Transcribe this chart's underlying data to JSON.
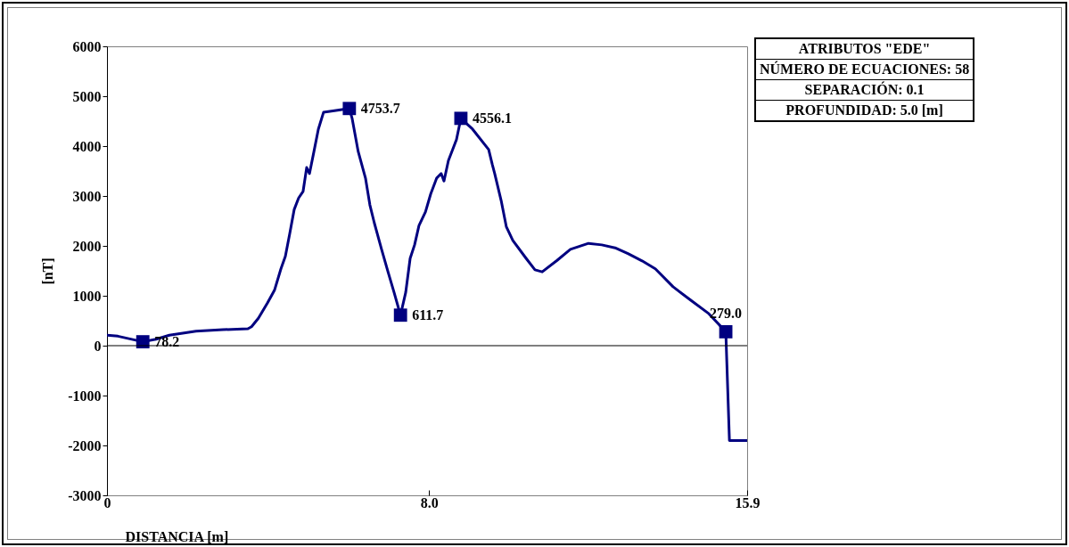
{
  "chart_data": {
    "type": "line",
    "xlabel": "DISTANCIA [m]",
    "ylabel": "[nT]",
    "xlim": [
      0,
      15.9
    ],
    "xticks": [
      0,
      {
        "value": 8,
        "label": "8.0"
      },
      15.9
    ],
    "ylim": [
      -3000,
      6000
    ],
    "yticks": [
      -3000,
      -2000,
      -1000,
      0,
      1000,
      2000,
      3000,
      4000,
      5000,
      6000
    ],
    "grid": false,
    "ref_lines": [
      {
        "axis": "y",
        "value": 0
      }
    ],
    "annotations": [
      "ATRIBUTOS \"EDE\"",
      "NÚMERO DE ECUACIONES: 58",
      "SEPARACIÓN: 0.1",
      "PROFUNDIDAD: 5.0 [m]"
    ],
    "series": [
      {
        "type": "line",
        "color": "#000080",
        "marker": "none",
        "line_style": "solid",
        "x": [
          0,
          0.27,
          0.89,
          1.22,
          1.55,
          2.21,
          2.88,
          3.5,
          3.59,
          3.76,
          3.99,
          4.16,
          4.32,
          4.43,
          4.54,
          4.65,
          4.76,
          4.87,
          4.96,
          5.03,
          5.14,
          5.25,
          5.38,
          5.65,
          6.02,
          6.09,
          6.24,
          6.42,
          6.53,
          6.64,
          6.82,
          6.98,
          7.13,
          7.29,
          7.42,
          7.53,
          7.64,
          7.75,
          7.91,
          8.04,
          8.19,
          8.3,
          8.37,
          8.48,
          8.68,
          8.79,
          9.08,
          9.48,
          9.57,
          9.63,
          9.79,
          9.92,
          10.08,
          10.41,
          10.63,
          10.81,
          11.18,
          11.51,
          11.96,
          12.29,
          12.62,
          12.95,
          13.29,
          13.62,
          14.06,
          14.5,
          14.95,
          15.37,
          15.46,
          15.9
        ],
        "values": [
          210,
          190,
          78.2,
          130,
          210,
          290,
          320,
          340,
          380,
          550,
          860,
          1110,
          1540,
          1790,
          2250,
          2730,
          2960,
          3090,
          3570,
          3450,
          3890,
          4340,
          4680,
          4710,
          4753.7,
          4550,
          3890,
          3360,
          2820,
          2460,
          1930,
          1480,
          1070,
          611.7,
          1070,
          1750,
          2020,
          2410,
          2680,
          3040,
          3360,
          3450,
          3300,
          3710,
          4130,
          4556.1,
          4340,
          3930,
          3630,
          3450,
          2910,
          2380,
          2110,
          1750,
          1520,
          1480,
          1710,
          1930,
          2050,
          2020,
          1960,
          1840,
          1700,
          1540,
          1180,
          910,
          640,
          279,
          -1900,
          -1900
        ]
      },
      {
        "type": "scatter",
        "color": "#000080",
        "marker": "square",
        "x": [
          0.89,
          6.02,
          7.29,
          8.79,
          15.37
        ],
        "values": [
          78.2,
          4753.7,
          611.7,
          4556.1,
          279.0
        ],
        "value_labels": [
          "78.2",
          "4753.7",
          "611.7",
          "4556.1",
          "279.0"
        ]
      }
    ]
  }
}
